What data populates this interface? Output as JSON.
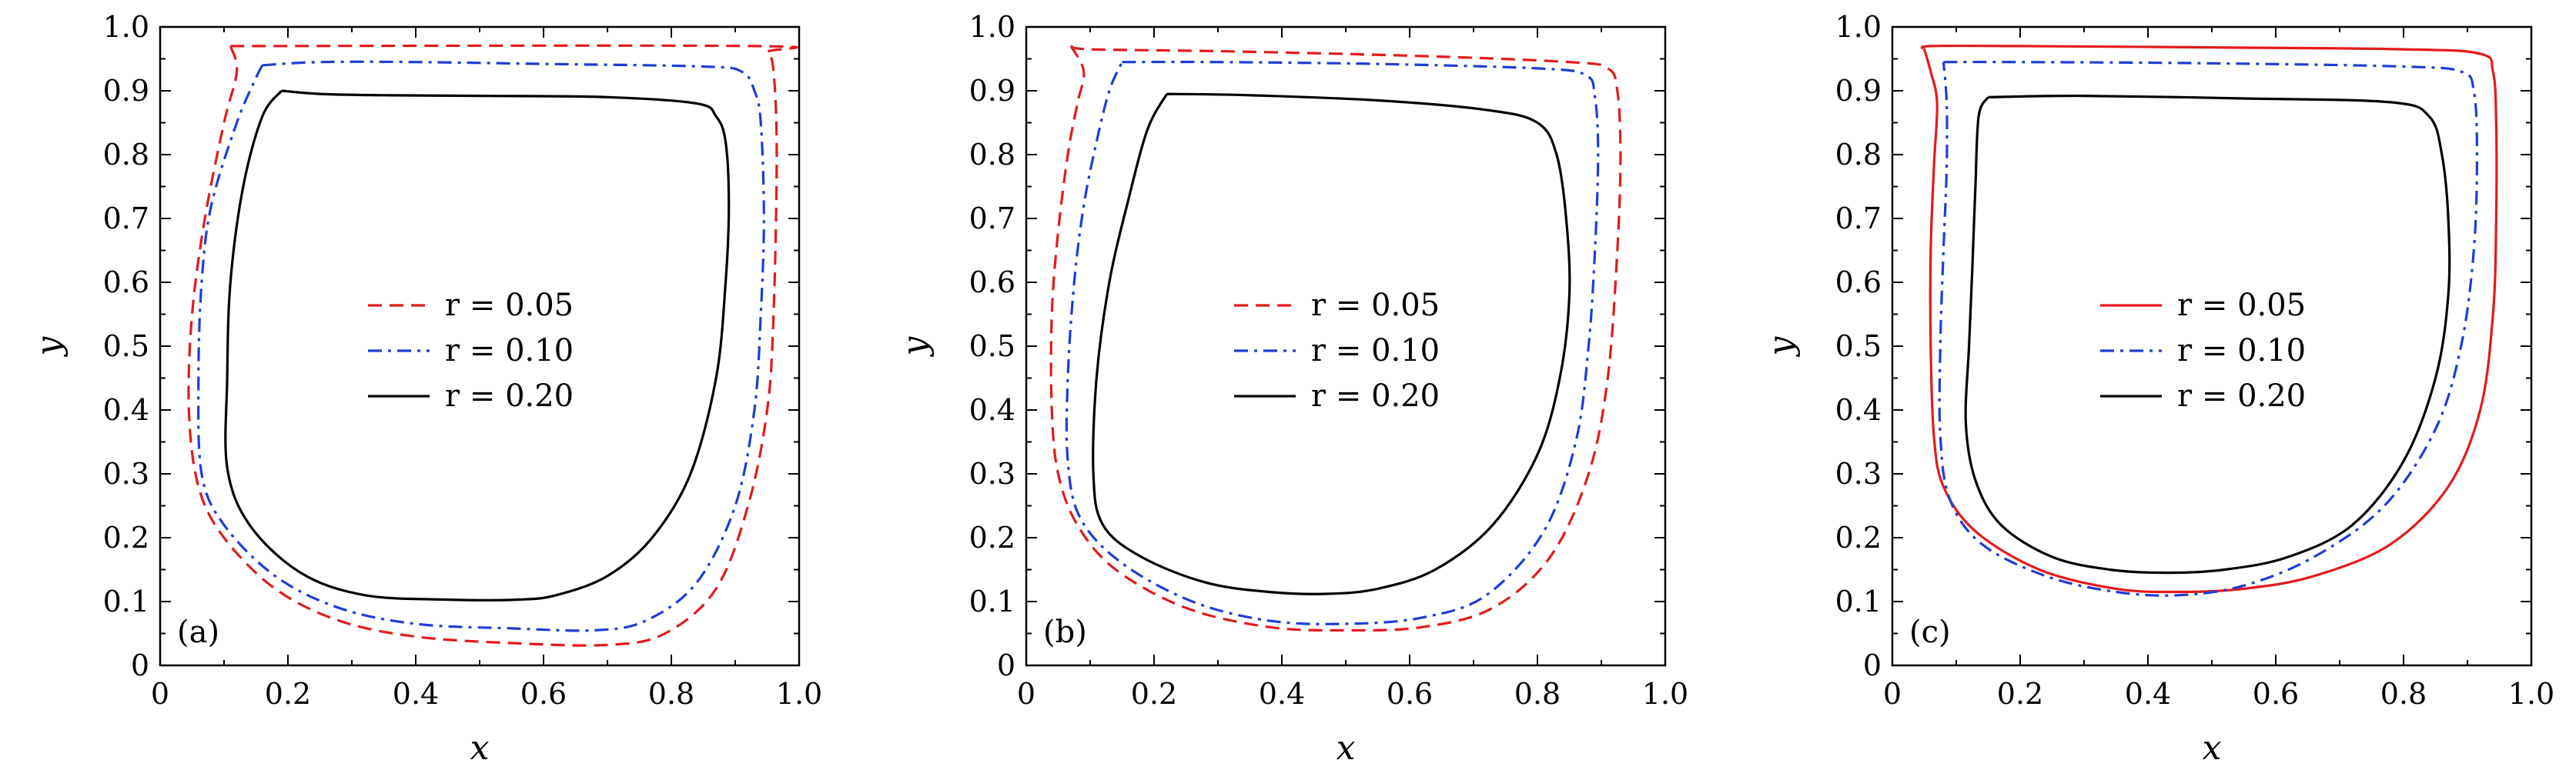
{
  "chart_data": [
    {
      "type": "line",
      "panel_label": "(a)",
      "xlabel": "x",
      "ylabel": "y",
      "xlim": [
        0,
        1.0
      ],
      "ylim": [
        0,
        1.0
      ],
      "xticks": [
        "0",
        "0.2",
        "0.4",
        "0.6",
        "0.8",
        "1.0"
      ],
      "yticks": [
        "0",
        "0.1",
        "0.2",
        "0.3",
        "0.4",
        "0.5",
        "0.6",
        "0.7",
        "0.8",
        "0.9",
        "1.0"
      ],
      "grid": false,
      "legend_position": "center",
      "series": [
        {
          "name": "r = 0.05",
          "color": "#e31a1c",
          "dash": "dashed",
          "points": [
            [
              0.11,
              0.97
            ],
            [
              0.93,
              0.97
            ],
            [
              0.95,
              0.96
            ],
            [
              0.96,
              0.93
            ],
            [
              0.965,
              0.8
            ],
            [
              0.96,
              0.55
            ],
            [
              0.95,
              0.4
            ],
            [
              0.92,
              0.25
            ],
            [
              0.87,
              0.12
            ],
            [
              0.79,
              0.05
            ],
            [
              0.7,
              0.032
            ],
            [
              0.55,
              0.035
            ],
            [
              0.4,
              0.045
            ],
            [
              0.28,
              0.07
            ],
            [
              0.18,
              0.12
            ],
            [
              0.1,
              0.2
            ],
            [
              0.06,
              0.28
            ],
            [
              0.045,
              0.4
            ],
            [
              0.05,
              0.55
            ],
            [
              0.07,
              0.7
            ],
            [
              0.1,
              0.85
            ],
            [
              0.12,
              0.93
            ],
            [
              0.11,
              0.97
            ]
          ]
        },
        {
          "name": "r = 0.10",
          "color": "#1f3dd6",
          "dash": "dashdot",
          "points": [
            [
              0.16,
              0.94
            ],
            [
              0.25,
              0.945
            ],
            [
              0.4,
              0.945
            ],
            [
              0.6,
              0.942
            ],
            [
              0.85,
              0.938
            ],
            [
              0.91,
              0.93
            ],
            [
              0.93,
              0.9
            ],
            [
              0.94,
              0.85
            ],
            [
              0.945,
              0.7
            ],
            [
              0.94,
              0.55
            ],
            [
              0.93,
              0.4
            ],
            [
              0.9,
              0.25
            ],
            [
              0.84,
              0.13
            ],
            [
              0.76,
              0.07
            ],
            [
              0.68,
              0.055
            ],
            [
              0.55,
              0.058
            ],
            [
              0.4,
              0.065
            ],
            [
              0.28,
              0.09
            ],
            [
              0.18,
              0.14
            ],
            [
              0.1,
              0.22
            ],
            [
              0.065,
              0.3
            ],
            [
              0.06,
              0.45
            ],
            [
              0.065,
              0.6
            ],
            [
              0.08,
              0.72
            ],
            [
              0.12,
              0.85
            ],
            [
              0.15,
              0.92
            ],
            [
              0.16,
              0.94
            ]
          ]
        },
        {
          "name": "r = 0.20",
          "color": "#000000",
          "dash": "solid",
          "points": [
            [
              0.19,
              0.9
            ],
            [
              0.25,
              0.895
            ],
            [
              0.35,
              0.893
            ],
            [
              0.5,
              0.892
            ],
            [
              0.7,
              0.89
            ],
            [
              0.84,
              0.88
            ],
            [
              0.87,
              0.86
            ],
            [
              0.885,
              0.82
            ],
            [
              0.89,
              0.72
            ],
            [
              0.885,
              0.6
            ],
            [
              0.87,
              0.45
            ],
            [
              0.83,
              0.3
            ],
            [
              0.77,
              0.2
            ],
            [
              0.7,
              0.14
            ],
            [
              0.62,
              0.11
            ],
            [
              0.56,
              0.103
            ],
            [
              0.45,
              0.103
            ],
            [
              0.32,
              0.11
            ],
            [
              0.22,
              0.145
            ],
            [
              0.14,
              0.22
            ],
            [
              0.105,
              0.31
            ],
            [
              0.105,
              0.45
            ],
            [
              0.11,
              0.6
            ],
            [
              0.13,
              0.75
            ],
            [
              0.16,
              0.86
            ],
            [
              0.19,
              0.9
            ]
          ]
        }
      ]
    },
    {
      "type": "line",
      "panel_label": "(b)",
      "xlabel": "x",
      "ylabel": "y",
      "xlim": [
        0,
        1.0
      ],
      "ylim": [
        0,
        1.0
      ],
      "xticks": [
        "0",
        "0.2",
        "0.4",
        "0.6",
        "0.8",
        "1.0"
      ],
      "yticks": [
        "0",
        "0.1",
        "0.2",
        "0.3",
        "0.4",
        "0.5",
        "0.6",
        "0.7",
        "0.8",
        "0.9",
        "1.0"
      ],
      "grid": false,
      "legend_position": "center",
      "series": [
        {
          "name": "r = 0.05",
          "color": "#e31a1c",
          "dash": "dashed",
          "points": [
            [
              0.07,
              0.97
            ],
            [
              0.1,
              0.965
            ],
            [
              0.3,
              0.962
            ],
            [
              0.6,
              0.955
            ],
            [
              0.85,
              0.945
            ],
            [
              0.91,
              0.935
            ],
            [
              0.925,
              0.9
            ],
            [
              0.93,
              0.8
            ],
            [
              0.925,
              0.65
            ],
            [
              0.91,
              0.45
            ],
            [
              0.88,
              0.3
            ],
            [
              0.82,
              0.17
            ],
            [
              0.73,
              0.09
            ],
            [
              0.62,
              0.06
            ],
            [
              0.5,
              0.055
            ],
            [
              0.38,
              0.06
            ],
            [
              0.25,
              0.09
            ],
            [
              0.14,
              0.15
            ],
            [
              0.08,
              0.22
            ],
            [
              0.05,
              0.3
            ],
            [
              0.04,
              0.4
            ],
            [
              0.04,
              0.55
            ],
            [
              0.05,
              0.68
            ],
            [
              0.065,
              0.8
            ],
            [
              0.08,
              0.88
            ],
            [
              0.09,
              0.93
            ],
            [
              0.07,
              0.97
            ]
          ]
        },
        {
          "name": "r = 0.10",
          "color": "#1f3dd6",
          "dash": "dashdot",
          "points": [
            [
              0.15,
              0.945
            ],
            [
              0.3,
              0.945
            ],
            [
              0.55,
              0.942
            ],
            [
              0.8,
              0.935
            ],
            [
              0.875,
              0.925
            ],
            [
              0.89,
              0.89
            ],
            [
              0.895,
              0.8
            ],
            [
              0.89,
              0.65
            ],
            [
              0.88,
              0.5
            ],
            [
              0.86,
              0.35
            ],
            [
              0.81,
              0.21
            ],
            [
              0.72,
              0.11
            ],
            [
              0.62,
              0.075
            ],
            [
              0.5,
              0.065
            ],
            [
              0.38,
              0.07
            ],
            [
              0.26,
              0.1
            ],
            [
              0.15,
              0.16
            ],
            [
              0.085,
              0.23
            ],
            [
              0.065,
              0.32
            ],
            [
              0.065,
              0.45
            ],
            [
              0.075,
              0.6
            ],
            [
              0.09,
              0.72
            ],
            [
              0.11,
              0.82
            ],
            [
              0.13,
              0.9
            ],
            [
              0.15,
              0.945
            ]
          ]
        },
        {
          "name": "r = 0.20",
          "color": "#000000",
          "dash": "solid",
          "points": [
            [
              0.22,
              0.895
            ],
            [
              0.35,
              0.893
            ],
            [
              0.55,
              0.885
            ],
            [
              0.72,
              0.87
            ],
            [
              0.8,
              0.85
            ],
            [
              0.83,
              0.8
            ],
            [
              0.845,
              0.7
            ],
            [
              0.85,
              0.58
            ],
            [
              0.835,
              0.45
            ],
            [
              0.8,
              0.33
            ],
            [
              0.73,
              0.22
            ],
            [
              0.64,
              0.15
            ],
            [
              0.55,
              0.12
            ],
            [
              0.47,
              0.112
            ],
            [
              0.38,
              0.115
            ],
            [
              0.28,
              0.13
            ],
            [
              0.18,
              0.17
            ],
            [
              0.12,
              0.22
            ],
            [
              0.105,
              0.3
            ],
            [
              0.11,
              0.45
            ],
            [
              0.13,
              0.6
            ],
            [
              0.16,
              0.73
            ],
            [
              0.19,
              0.84
            ],
            [
              0.22,
              0.895
            ]
          ]
        }
      ]
    },
    {
      "type": "line",
      "panel_label": "(c)",
      "xlabel": "x",
      "ylabel": "y",
      "xlim": [
        0,
        1.0
      ],
      "ylim": [
        0,
        1.0
      ],
      "xticks": [
        "0",
        "0.2",
        "0.4",
        "0.6",
        "0.8",
        "1.0"
      ],
      "yticks": [
        "0",
        "0.1",
        "0.2",
        "0.3",
        "0.4",
        "0.5",
        "0.6",
        "0.7",
        "0.8",
        "0.9",
        "1.0"
      ],
      "grid": false,
      "legend_position": "center",
      "series": [
        {
          "name": "r = 0.05",
          "color": "#e31a1c",
          "dash": "solid",
          "points": [
            [
              0.05,
              0.965
            ],
            [
              0.06,
              0.97
            ],
            [
              0.2,
              0.97
            ],
            [
              0.5,
              0.968
            ],
            [
              0.8,
              0.965
            ],
            [
              0.92,
              0.958
            ],
            [
              0.94,
              0.93
            ],
            [
              0.945,
              0.85
            ],
            [
              0.945,
              0.7
            ],
            [
              0.94,
              0.55
            ],
            [
              0.92,
              0.4
            ],
            [
              0.87,
              0.28
            ],
            [
              0.78,
              0.19
            ],
            [
              0.66,
              0.14
            ],
            [
              0.55,
              0.12
            ],
            [
              0.45,
              0.115
            ],
            [
              0.35,
              0.12
            ],
            [
              0.23,
              0.15
            ],
            [
              0.13,
              0.21
            ],
            [
              0.08,
              0.28
            ],
            [
              0.065,
              0.36
            ],
            [
              0.06,
              0.5
            ],
            [
              0.06,
              0.65
            ],
            [
              0.065,
              0.78
            ],
            [
              0.07,
              0.88
            ],
            [
              0.06,
              0.93
            ],
            [
              0.05,
              0.965
            ]
          ]
        },
        {
          "name": "r = 0.10",
          "color": "#1f3dd6",
          "dash": "dashdot",
          "points": [
            [
              0.08,
              0.945
            ],
            [
              0.2,
              0.945
            ],
            [
              0.5,
              0.943
            ],
            [
              0.8,
              0.938
            ],
            [
              0.89,
              0.93
            ],
            [
              0.91,
              0.9
            ],
            [
              0.915,
              0.8
            ],
            [
              0.91,
              0.65
            ],
            [
              0.89,
              0.5
            ],
            [
              0.85,
              0.37
            ],
            [
              0.77,
              0.25
            ],
            [
              0.66,
              0.17
            ],
            [
              0.55,
              0.125
            ],
            [
              0.45,
              0.11
            ],
            [
              0.35,
              0.115
            ],
            [
              0.24,
              0.14
            ],
            [
              0.14,
              0.19
            ],
            [
              0.09,
              0.26
            ],
            [
              0.075,
              0.36
            ],
            [
              0.075,
              0.5
            ],
            [
              0.08,
              0.65
            ],
            [
              0.085,
              0.78
            ],
            [
              0.085,
              0.88
            ],
            [
              0.08,
              0.945
            ]
          ]
        },
        {
          "name": "r = 0.20",
          "color": "#000000",
          "dash": "solid",
          "points": [
            [
              0.15,
              0.89
            ],
            [
              0.3,
              0.892
            ],
            [
              0.55,
              0.888
            ],
            [
              0.78,
              0.882
            ],
            [
              0.84,
              0.86
            ],
            [
              0.86,
              0.8
            ],
            [
              0.87,
              0.7
            ],
            [
              0.87,
              0.58
            ],
            [
              0.85,
              0.45
            ],
            [
              0.8,
              0.32
            ],
            [
              0.72,
              0.22
            ],
            [
              0.62,
              0.17
            ],
            [
              0.52,
              0.15
            ],
            [
              0.43,
              0.145
            ],
            [
              0.34,
              0.15
            ],
            [
              0.25,
              0.17
            ],
            [
              0.17,
              0.22
            ],
            [
              0.13,
              0.29
            ],
            [
              0.115,
              0.38
            ],
            [
              0.12,
              0.5
            ],
            [
              0.125,
              0.62
            ],
            [
              0.13,
              0.75
            ],
            [
              0.135,
              0.86
            ],
            [
              0.15,
              0.89
            ]
          ]
        }
      ]
    }
  ]
}
